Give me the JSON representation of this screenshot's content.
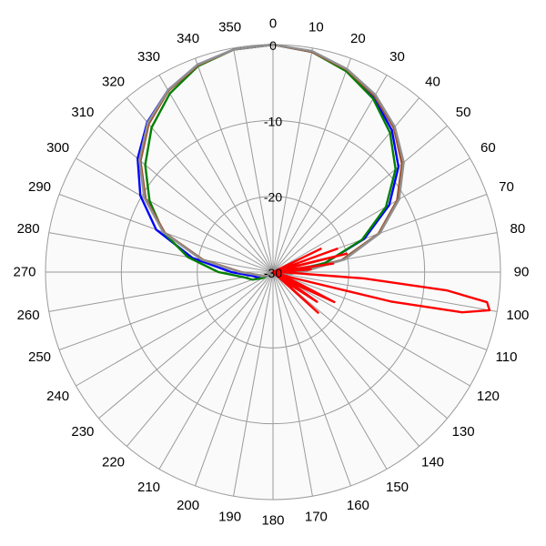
{
  "chart_data": {
    "type": "line",
    "subtype": "polar",
    "angle_unit": "degrees",
    "angle_direction": "clockwise",
    "angle_zero": "top",
    "angle_ticks": [
      "0",
      "10",
      "20",
      "30",
      "40",
      "50",
      "60",
      "70",
      "80",
      "90",
      "100",
      "110",
      "120",
      "130",
      "140",
      "150",
      "160",
      "170",
      "180",
      "190",
      "200",
      "210",
      "220",
      "230",
      "240",
      "250",
      "260",
      "270",
      "280",
      "290",
      "300",
      "310",
      "320",
      "330",
      "340",
      "350"
    ],
    "radial_ticks": [
      "0",
      "-10",
      "-20",
      "-30"
    ],
    "radial_range": [
      -30,
      0
    ],
    "grid": true,
    "legend": "none",
    "colors": {
      "grid": "#9a9a9a",
      "background": "#fafafa",
      "blue": "#0000ff",
      "green": "#008000",
      "brown": "#a0522d",
      "gray": "#909090",
      "red": "#ff0000"
    },
    "series": [
      {
        "color": "#0000ff",
        "angles": [
          0,
          10,
          20,
          30,
          40,
          50,
          60,
          70,
          80,
          90,
          100,
          110,
          120,
          130,
          140,
          150,
          160,
          170,
          180,
          190,
          200,
          210,
          220,
          230,
          240,
          250,
          260,
          270,
          280,
          290,
          300,
          310,
          320,
          330,
          340,
          350
        ],
        "values": [
          0,
          -0.5,
          -1.7,
          -3.4,
          -5.6,
          -8.4,
          -12.3,
          -17.2,
          -23,
          -27.6,
          -28.6,
          -29.4,
          -30,
          -30,
          -30,
          -30,
          -30,
          -30,
          -30,
          -30,
          -30,
          -30,
          -30,
          -29.7,
          -28.6,
          -27.9,
          -27.2,
          -24.5,
          -19.2,
          -13.6,
          -9.8,
          -6.7,
          -4.2,
          -2.3,
          -0.9,
          -0.2
        ]
      },
      {
        "color": "#008000",
        "angles": [
          0,
          10,
          20,
          30,
          40,
          50,
          60,
          70,
          80,
          90,
          100,
          110,
          120,
          130,
          140,
          150,
          160,
          170,
          180,
          190,
          200,
          210,
          220,
          230,
          240,
          250,
          260,
          270,
          280,
          290,
          300,
          310,
          320,
          330,
          340,
          350
        ],
        "values": [
          0,
          -0.5,
          -1.8,
          -3.6,
          -6,
          -8.9,
          -12.8,
          -17.5,
          -23,
          -27.8,
          -28.8,
          -29.5,
          -30,
          -30,
          -30,
          -30,
          -30,
          -30,
          -30,
          -30,
          -30,
          -30,
          -30,
          -29.7,
          -28.4,
          -27.1,
          -26.1,
          -22.8,
          -18.6,
          -14.6,
          -11.2,
          -8,
          -5.1,
          -2.8,
          -1.1,
          -0.2
        ]
      },
      {
        "color": "#a0522d",
        "angles": [
          0,
          10,
          20,
          30,
          40,
          50,
          60,
          70,
          80,
          90,
          100,
          110,
          120,
          130,
          140,
          150,
          160,
          170,
          180,
          190,
          200,
          210,
          220,
          230,
          240,
          250,
          260,
          270,
          280,
          290,
          300,
          310,
          320,
          330,
          340,
          350
        ],
        "values": [
          0,
          -0.5,
          -1.6,
          -3.2,
          -5.2,
          -7.8,
          -11.1,
          -15.2,
          -20.8,
          -26.5,
          -28.3,
          -29.4,
          -30,
          -30,
          -30,
          -30,
          -30,
          -30,
          -30,
          -30,
          -30,
          -30,
          -30,
          -29.8,
          -29,
          -28.4,
          -27.9,
          -25.8,
          -20.6,
          -14.8,
          -10.6,
          -7.2,
          -4.5,
          -2.4,
          -1,
          -0.2
        ]
      },
      {
        "color": "#909090",
        "angles": [
          0,
          10,
          20,
          30,
          40,
          50,
          60,
          70,
          80,
          90,
          100,
          110,
          120,
          130,
          140,
          150,
          160,
          170,
          180,
          190,
          200,
          210,
          220,
          230,
          240,
          250,
          260,
          270,
          280,
          290,
          300,
          310,
          320,
          330,
          340,
          350
        ],
        "values": [
          0,
          -0.4,
          -1.5,
          -3,
          -5,
          -7.5,
          -10.8,
          -15,
          -20.4,
          -26.2,
          -28.2,
          -29.3,
          -30,
          -30,
          -30,
          -30,
          -30,
          -30,
          -30,
          -30,
          -30,
          -30,
          -30,
          -29.8,
          -29,
          -28.4,
          -27.9,
          -25.6,
          -20.4,
          -14.6,
          -10.4,
          -7,
          -4.3,
          -2.3,
          -0.9,
          -0.2
        ]
      },
      {
        "color": "#ff0000",
        "angles": [
          0,
          10,
          15,
          20,
          25,
          30,
          35,
          40,
          45,
          50,
          55,
          60,
          62,
          64,
          66,
          68,
          70,
          72,
          74,
          76,
          78,
          80,
          82,
          84,
          86,
          88,
          90,
          92,
          94,
          96,
          98,
          100,
          102,
          104,
          106,
          108,
          110,
          112,
          114,
          116,
          118,
          120,
          122,
          124,
          126,
          128,
          130,
          132,
          134,
          136,
          138,
          140,
          145,
          150,
          160,
          170,
          180,
          190,
          200,
          210,
          220,
          230,
          240,
          250,
          260,
          270,
          280,
          290,
          300,
          310,
          320,
          330,
          340,
          350,
          360
        ],
        "values": [
          -30,
          -30,
          -30,
          -30,
          -30,
          -30,
          -30,
          -30,
          -30,
          -30,
          -30,
          -30,
          -30,
          -23,
          -30,
          -30,
          -21,
          -30,
          -28,
          -20,
          -30,
          -29,
          -22,
          -30,
          -25,
          -29.5,
          -29.8,
          -28,
          -18,
          -7,
          -1.5,
          -1,
          -4.5,
          -14,
          -27,
          -29,
          -30,
          -28,
          -26,
          -21,
          -26,
          -29,
          -27,
          -23,
          -27,
          -30,
          -28,
          -22,
          -30,
          -29.5,
          -30,
          -30,
          -30,
          -30,
          -30,
          -30,
          -30,
          -30,
          -30,
          -30,
          -30,
          -30,
          -30,
          -30,
          -30,
          -30,
          -30,
          -30,
          -30,
          -30,
          -30,
          -30,
          -30,
          -30,
          -30
        ]
      }
    ]
  }
}
